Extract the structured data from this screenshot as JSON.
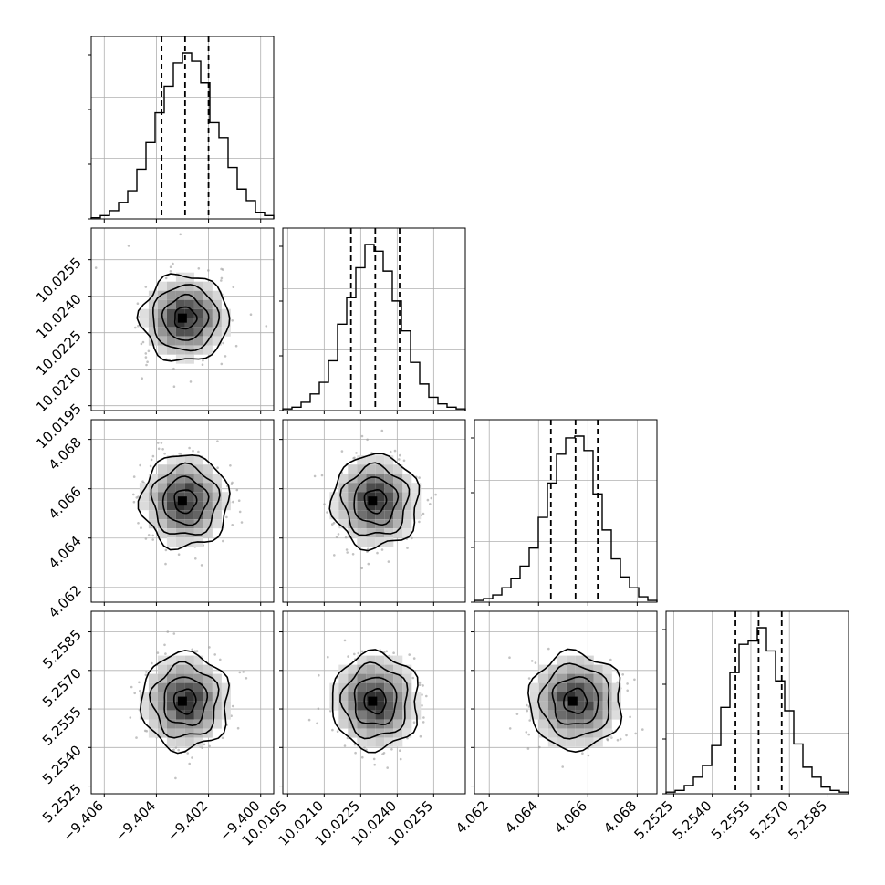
{
  "chart_data": {
    "type": "corner",
    "parameters": [
      {
        "hist": [
          0.007,
          0.02,
          0.05,
          0.1,
          0.17,
          0.3,
          0.46,
          0.64,
          0.8,
          0.94,
          1.0,
          0.95,
          0.82,
          0.58,
          0.49,
          0.31,
          0.18,
          0.11,
          0.04,
          0.02
        ],
        "hist_range": [
          -9.4065,
          -9.3995
        ],
        "x_ticks": [
          -9.406,
          -9.404,
          -9.402,
          -9.4
        ],
        "x_tick_labels": [
          "−9.406",
          "−9.404",
          "−9.402",
          "−9.400"
        ],
        "y_ticks": [],
        "y_tick_labels": [],
        "quantiles": [
          -9.4038,
          -9.4029,
          -9.402
        ],
        "mean": -9.4029,
        "sd": 0.0008
      },
      {
        "hist": [
          0.01,
          0.02,
          0.05,
          0.1,
          0.17,
          0.3,
          0.52,
          0.68,
          0.86,
          1.0,
          0.96,
          0.84,
          0.66,
          0.48,
          0.29,
          0.16,
          0.08,
          0.04,
          0.02,
          0.01
        ],
        "hist_range": [
          10.0193,
          10.0268
        ],
        "x_ticks": [
          10.0195,
          10.021,
          10.0225,
          10.024,
          10.0255
        ],
        "x_tick_labels": [
          "10.0195",
          "10.0210",
          "10.0225",
          "10.0240",
          "10.0255"
        ],
        "y_ticks": [
          10.0195,
          10.021,
          10.0225,
          10.024,
          10.0255
        ],
        "y_tick_labels": [
          "10.0195",
          "10.0210",
          "10.0225",
          "10.0240",
          "10.0255"
        ],
        "quantiles": [
          10.0221,
          10.0231,
          10.0241
        ],
        "mean": 10.0231,
        "sd": 0.00085
      },
      {
        "hist": [
          0.01,
          0.02,
          0.04,
          0.08,
          0.13,
          0.2,
          0.3,
          0.47,
          0.66,
          0.82,
          0.91,
          0.92,
          0.84,
          0.6,
          0.4,
          0.24,
          0.14,
          0.08,
          0.03,
          0.01
        ],
        "hist_range": [
          4.0614,
          4.0688
        ],
        "x_ticks": [
          4.062,
          4.064,
          4.066,
          4.068
        ],
        "x_tick_labels": [
          "4.062",
          "4.064",
          "4.066",
          "4.068"
        ],
        "y_ticks": [
          4.062,
          4.064,
          4.066,
          4.068
        ],
        "y_tick_labels": [
          "4.062",
          "4.064",
          "4.066",
          "4.068"
        ],
        "quantiles": [
          4.0645,
          4.0655,
          4.0664
        ],
        "mean": 4.0655,
        "sd": 0.0009
      },
      {
        "hist": [
          0.01,
          0.02,
          0.05,
          0.1,
          0.17,
          0.29,
          0.52,
          0.73,
          0.9,
          0.92,
          1.0,
          0.86,
          0.68,
          0.5,
          0.3,
          0.16,
          0.1,
          0.04,
          0.02,
          0.01
        ],
        "hist_range": [
          5.2522,
          5.2593
        ],
        "x_ticks": [
          5.2525,
          5.254,
          5.2555,
          5.257,
          5.2585
        ],
        "x_tick_labels": [
          "5.2525",
          "5.2540",
          "5.2555",
          "5.2570",
          "5.2585"
        ],
        "y_ticks": [
          5.2525,
          5.254,
          5.2555,
          5.257,
          5.2585
        ],
        "y_tick_labels": [
          "5.2525",
          "5.2540",
          "5.2555",
          "5.2570",
          "5.2585"
        ],
        "quantiles": [
          5.2549,
          5.2558,
          5.2567
        ],
        "mean": 5.2558,
        "sd": 0.0009
      }
    ],
    "contour_levels_sigma": [
      0.5,
      1.0,
      1.5,
      2.0
    ],
    "grid": true,
    "colors": {
      "line": "#000000",
      "grid": "#b0b0b0",
      "scatter": "#9a9a9a",
      "frame": "#000000"
    }
  }
}
